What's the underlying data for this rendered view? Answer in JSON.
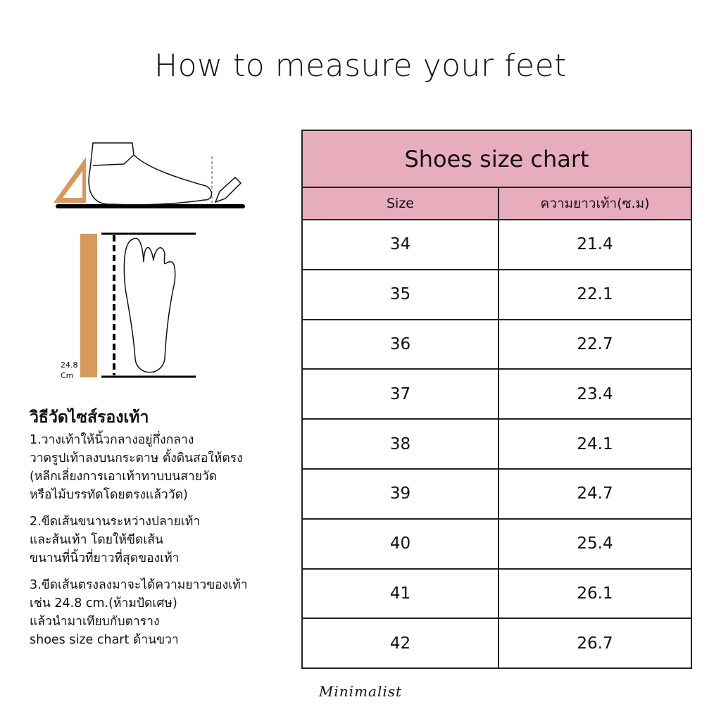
{
  "title": "How to measure your feet",
  "illustration": {
    "measurement_label": "24.8",
    "measurement_unit": "Cm"
  },
  "chart": {
    "title": "Shoes size chart",
    "columns": [
      "Size",
      "ความยาวเท้า(ซ.ม)"
    ],
    "rows": [
      [
        "34",
        "21.4"
      ],
      [
        "35",
        "22.1"
      ],
      [
        "36",
        "22.7"
      ],
      [
        "37",
        "23.4"
      ],
      [
        "38",
        "24.1"
      ],
      [
        "39",
        "24.7"
      ],
      [
        "40",
        "25.4"
      ],
      [
        "41",
        "26.1"
      ],
      [
        "42",
        "26.7"
      ]
    ],
    "header_color": "#e8adbd"
  },
  "instructions": {
    "heading": "วิธีวัดไซส์รองเท้า",
    "steps": [
      [
        "1.วางเท้าให้นิ้วกลางอยู่กึ่งกลาง",
        "วาดรูปเท้าลงบนกระดาษ ตั้งดินสอให้ตรง",
        "(หลีกเลี่ยงการเอาเท้าทาบบนสายวัด",
        "หรือไม้บรรทัดโดยตรงแล้ววัด)"
      ],
      [
        "2.ขีดเส้นขนานระหว่างปลายเท้า",
        "และส้นเท้า โดยให้ขีดเส้น",
        "ขนานที่นิ้วที่ยาวที่สุดของเท้า"
      ],
      [
        "3.ขีดเส้นตรงลงมาจะได้ความยาวของเท้า",
        "เช่น 24.8 cm.(ห้ามปัดเศษ)",
        "แล้วนำมาเทียบกับตาราง",
        "shoes size chart ด้านขวา"
      ]
    ]
  },
  "brand": "Minimalist"
}
